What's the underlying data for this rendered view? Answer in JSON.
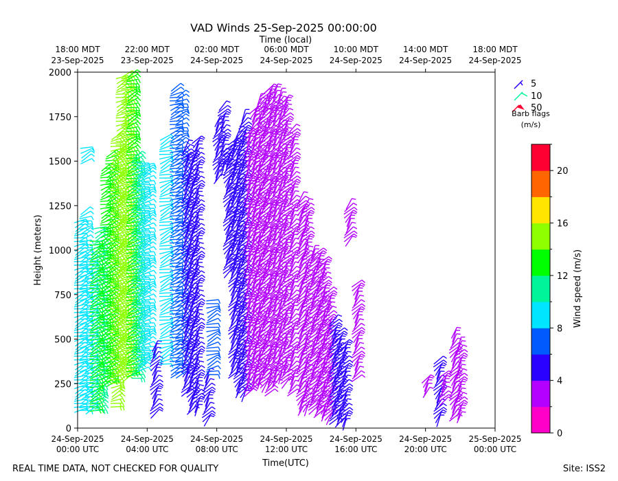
{
  "chart_data": {
    "type": "scatter",
    "title": "VAD Winds 25-Sep-2025 00:00:00",
    "top_axis_label": "Time (local)",
    "xlabel": "Time(UTC)",
    "ylabel": "Height (meters)",
    "x_range_utc": [
      "2025-09-24T00:00",
      "2025-09-25T00:00"
    ],
    "ylim": [
      0,
      2000
    ],
    "grid": false,
    "bottom_ticks": [
      {
        "hour": 0,
        "line1": "24-Sep-2025",
        "line2": "00:00 UTC"
      },
      {
        "hour": 4,
        "line1": "24-Sep-2025",
        "line2": "04:00 UTC"
      },
      {
        "hour": 8,
        "line1": "24-Sep-2025",
        "line2": "08:00 UTC"
      },
      {
        "hour": 12,
        "line1": "24-Sep-2025",
        "line2": "12:00 UTC"
      },
      {
        "hour": 16,
        "line1": "24-Sep-2025",
        "line2": "16:00 UTC"
      },
      {
        "hour": 20,
        "line1": "24-Sep-2025",
        "line2": "20:00 UTC"
      },
      {
        "hour": 24,
        "line1": "25-Sep-2025",
        "line2": "00:00 UTC"
      }
    ],
    "top_ticks": [
      {
        "hour": 0,
        "line1": "18:00 MDT",
        "line2": "23-Sep-2025"
      },
      {
        "hour": 4,
        "line1": "22:00 MDT",
        "line2": "23-Sep-2025"
      },
      {
        "hour": 8,
        "line1": "02:00 MDT",
        "line2": "24-Sep-2025"
      },
      {
        "hour": 12,
        "line1": "06:00 MDT",
        "line2": "24-Sep-2025"
      },
      {
        "hour": 16,
        "line1": "10:00 MDT",
        "line2": "24-Sep-2025"
      },
      {
        "hour": 20,
        "line1": "14:00 MDT",
        "line2": "24-Sep-2025"
      },
      {
        "hour": 24,
        "line1": "18:00 MDT",
        "line2": "24-Sep-2025"
      }
    ],
    "y_ticks": [
      0,
      250,
      500,
      750,
      1000,
      1250,
      1500,
      1750,
      2000
    ],
    "barb_legend": {
      "entries": [
        {
          "label": "5",
          "color": "#2a00ff"
        },
        {
          "label": "10",
          "color": "#00f59a"
        },
        {
          "label": "50",
          "color": "#ff0033"
        }
      ],
      "title_line1": "Barb flags",
      "title_line2": "(m/s)"
    },
    "colorbar": {
      "label": "Wind speed (m/s)",
      "min": 0,
      "max": 22,
      "tick_values": [
        0,
        4,
        8,
        12,
        16,
        20
      ],
      "colors": [
        "#ff00c8",
        "#b400ff",
        "#2a00ff",
        "#005bff",
        "#00e5ff",
        "#00f59a",
        "#00ff00",
        "#8fff00",
        "#ffe600",
        "#ff6600",
        "#ff0033"
      ]
    },
    "barb_columns": [
      {
        "t": 0.15,
        "h0": 100,
        "h1": 1180,
        "speed": 8
      },
      {
        "t": 0.45,
        "h0": 100,
        "h1": 1230,
        "speed": 8
      },
      {
        "t": 0.5,
        "h0": 1500,
        "h1": 1580,
        "speed": 9
      },
      {
        "t": 0.75,
        "h0": 100,
        "h1": 980,
        "speed": 9
      },
      {
        "t": 1.05,
        "h0": 100,
        "h1": 1050,
        "speed": 12
      },
      {
        "t": 1.3,
        "h0": 100,
        "h1": 1130,
        "speed": 10
      },
      {
        "t": 1.65,
        "h0": 250,
        "h1": 1480,
        "speed": 13
      },
      {
        "t": 1.95,
        "h0": 250,
        "h1": 1560,
        "speed": 13
      },
      {
        "t": 2.25,
        "h0": 120,
        "h1": 1640,
        "speed": 14
      },
      {
        "t": 2.55,
        "h0": 300,
        "h1": 1990,
        "speed": 14
      },
      {
        "t": 2.85,
        "h0": 280,
        "h1": 2000,
        "speed": 14
      },
      {
        "t": 3.15,
        "h0": 300,
        "h1": 2000,
        "speed": 13
      },
      {
        "t": 3.45,
        "h0": 280,
        "h1": 1540,
        "speed": 10
      },
      {
        "t": 3.75,
        "h0": 330,
        "h1": 1500,
        "speed": 9
      },
      {
        "t": 4.05,
        "h0": 380,
        "h1": 1500,
        "speed": 9
      },
      {
        "t": 4.45,
        "h0": 80,
        "h1": 460,
        "speed": 5
      },
      {
        "t": 5.05,
        "h0": 360,
        "h1": 1640,
        "speed": 9
      },
      {
        "t": 5.65,
        "h0": 300,
        "h1": 1920,
        "speed": 7
      },
      {
        "t": 5.95,
        "h0": 300,
        "h1": 1880,
        "speed": 7
      },
      {
        "t": 6.25,
        "h0": 200,
        "h1": 1600,
        "speed": 5
      },
      {
        "t": 6.55,
        "h0": 100,
        "h1": 1560,
        "speed": 4
      },
      {
        "t": 6.85,
        "h0": 100,
        "h1": 1620,
        "speed": 5
      },
      {
        "t": 7.45,
        "h0": 40,
        "h1": 320,
        "speed": 5
      },
      {
        "t": 7.75,
        "h0": 300,
        "h1": 720,
        "speed": 6
      },
      {
        "t": 8.05,
        "h0": 1400,
        "h1": 1740,
        "speed": 5
      },
      {
        "t": 8.35,
        "h0": 1450,
        "h1": 1820,
        "speed": 5
      },
      {
        "t": 8.65,
        "h0": 870,
        "h1": 1580,
        "speed": 5
      },
      {
        "t": 8.95,
        "h0": 300,
        "h1": 1620,
        "speed": 5
      },
      {
        "t": 9.25,
        "h0": 200,
        "h1": 1680,
        "speed": 5
      },
      {
        "t": 9.55,
        "h0": 180,
        "h1": 1760,
        "speed": 4
      },
      {
        "t": 9.85,
        "h0": 200,
        "h1": 1680,
        "speed": 3
      },
      {
        "t": 10.15,
        "h0": 230,
        "h1": 1800,
        "speed": 3
      },
      {
        "t": 10.45,
        "h0": 250,
        "h1": 1850,
        "speed": 3
      },
      {
        "t": 10.75,
        "h0": 230,
        "h1": 1900,
        "speed": 3
      },
      {
        "t": 11.05,
        "h0": 200,
        "h1": 1920,
        "speed": 3
      },
      {
        "t": 11.35,
        "h0": 250,
        "h1": 1920,
        "speed": 3
      },
      {
        "t": 11.65,
        "h0": 280,
        "h1": 1880,
        "speed": 3
      },
      {
        "t": 11.95,
        "h0": 250,
        "h1": 1850,
        "speed": 3
      },
      {
        "t": 12.35,
        "h0": 200,
        "h1": 1700,
        "speed": 2
      },
      {
        "t": 12.85,
        "h0": 100,
        "h1": 1310,
        "speed": 2
      },
      {
        "t": 13.15,
        "h0": 100,
        "h1": 1260,
        "speed": 2
      },
      {
        "t": 13.55,
        "h0": 100,
        "h1": 1000,
        "speed": 2
      },
      {
        "t": 13.85,
        "h0": 80,
        "h1": 1000,
        "speed": 2
      },
      {
        "t": 14.15,
        "h0": 70,
        "h1": 950,
        "speed": 2
      },
      {
        "t": 14.45,
        "h0": 50,
        "h1": 780,
        "speed": 2
      },
      {
        "t": 14.75,
        "h0": 40,
        "h1": 620,
        "speed": 5
      },
      {
        "t": 15.05,
        "h0": 30,
        "h1": 560,
        "speed": 5
      },
      {
        "t": 15.35,
        "h0": 20,
        "h1": 480,
        "speed": 5
      },
      {
        "t": 15.6,
        "h0": 1050,
        "h1": 1260,
        "speed": 3
      },
      {
        "t": 16.05,
        "h0": 280,
        "h1": 820,
        "speed": 3
      },
      {
        "t": 20.05,
        "h0": 200,
        "h1": 280,
        "speed": 3
      },
      {
        "t": 20.75,
        "h0": 40,
        "h1": 400,
        "speed": 4
      },
      {
        "t": 21.05,
        "h0": 150,
        "h1": 320,
        "speed": 3
      },
      {
        "t": 21.65,
        "h0": 60,
        "h1": 550,
        "speed": 2
      },
      {
        "t": 21.95,
        "h0": 60,
        "h1": 480,
        "speed": 2
      }
    ]
  },
  "footer": {
    "left_note": "REAL TIME DATA, NOT CHECKED FOR QUALITY",
    "site_label": "Site: ISS2"
  }
}
